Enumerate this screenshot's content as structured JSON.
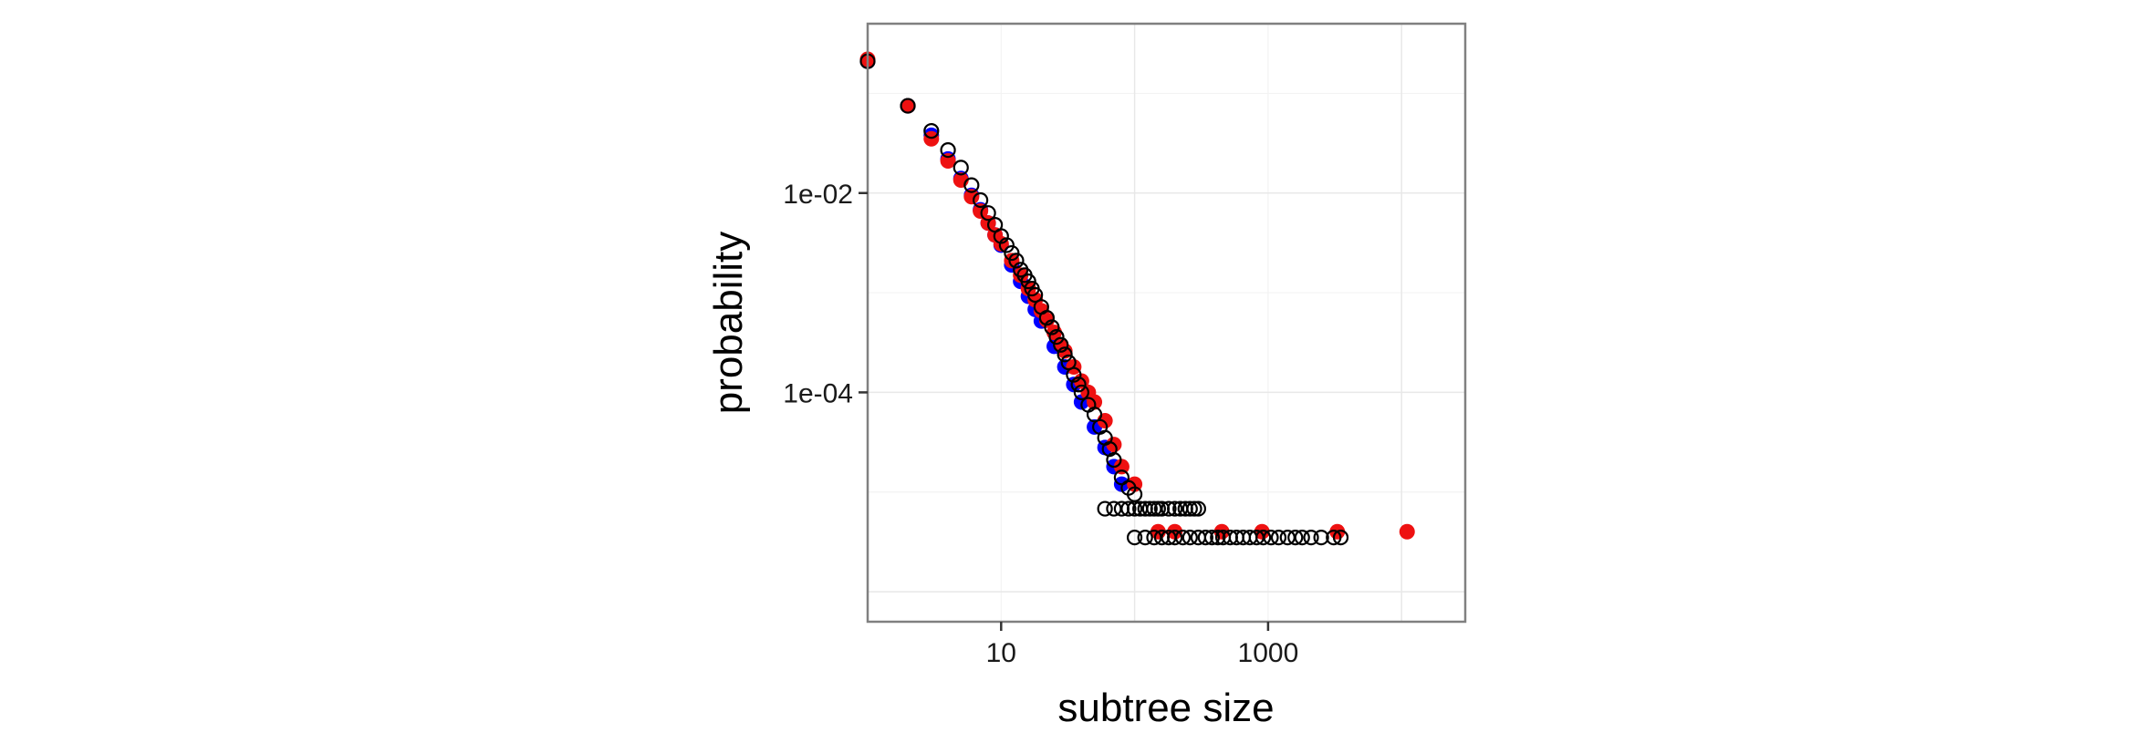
{
  "chart_data": {
    "type": "scatter",
    "title": "",
    "xlabel": "subtree size",
    "ylabel": "probability",
    "x_scale": "log10",
    "y_scale": "log10",
    "xlim": [
      1,
      30000
    ],
    "ylim": [
      5e-07,
      0.5
    ],
    "grid": true,
    "legend": "none",
    "x_ticks": [
      {
        "value": 10,
        "label": "10"
      },
      {
        "value": 1000,
        "label": "1000"
      }
    ],
    "y_ticks": [
      {
        "value": 0.01,
        "label": "1e-02"
      },
      {
        "value": 0.0001,
        "label": "1e-04"
      }
    ],
    "series": [
      {
        "marker": "filled-circle",
        "color": "#0000ff",
        "points": [
          [
            1,
            0.21
          ],
          [
            2,
            0.075
          ],
          [
            3,
            0.038
          ],
          [
            4,
            0.022
          ],
          [
            5,
            0.014
          ],
          [
            6,
            0.0095
          ],
          [
            7,
            0.0068
          ],
          [
            8,
            0.005
          ],
          [
            9,
            0.0038
          ],
          [
            10,
            0.003
          ],
          [
            12,
            0.0019
          ],
          [
            14,
            0.0013
          ],
          [
            16,
            0.00092
          ],
          [
            18,
            0.00068
          ],
          [
            20,
            0.00052
          ],
          [
            25,
            0.00029
          ],
          [
            30,
            0.00018
          ],
          [
            35,
            0.00012
          ],
          [
            40,
            8e-05
          ],
          [
            50,
            4.5e-05
          ],
          [
            60,
            2.8e-05
          ],
          [
            70,
            1.8e-05
          ],
          [
            80,
            1.2e-05
          ]
        ]
      },
      {
        "marker": "filled-circle",
        "color": "#ee1111",
        "points": [
          [
            1,
            0.22
          ],
          [
            2,
            0.075
          ],
          [
            3,
            0.035
          ],
          [
            4,
            0.021
          ],
          [
            5,
            0.0135
          ],
          [
            6,
            0.0092
          ],
          [
            7,
            0.0066
          ],
          [
            8,
            0.005
          ],
          [
            9,
            0.0038
          ],
          [
            10,
            0.0031
          ],
          [
            12,
            0.0021
          ],
          [
            14,
            0.0015
          ],
          [
            16,
            0.0011
          ],
          [
            18,
            0.00085
          ],
          [
            20,
            0.00066
          ],
          [
            22,
            0.00053
          ],
          [
            25,
            0.0004
          ],
          [
            28,
            0.0003
          ],
          [
            30,
            0.00026
          ],
          [
            35,
            0.00018
          ],
          [
            40,
            0.00013
          ],
          [
            45,
            0.0001
          ],
          [
            50,
            8e-05
          ],
          [
            60,
            5.2e-05
          ],
          [
            70,
            3e-05
          ],
          [
            80,
            1.8e-05
          ],
          [
            100,
            1.2e-05
          ],
          [
            150,
            4e-06
          ],
          [
            200,
            4e-06
          ],
          [
            450,
            4e-06
          ],
          [
            900,
            4e-06
          ],
          [
            3300,
            4e-06
          ],
          [
            11000,
            4e-06
          ]
        ]
      },
      {
        "marker": "open-circle",
        "color": "#000000",
        "points": [
          [
            1,
            0.21
          ],
          [
            2,
            0.075
          ],
          [
            3,
            0.042
          ],
          [
            4,
            0.027
          ],
          [
            5,
            0.018
          ],
          [
            6,
            0.012
          ],
          [
            7,
            0.0085
          ],
          [
            8,
            0.0063
          ],
          [
            9,
            0.0048
          ],
          [
            10,
            0.0037
          ],
          [
            11,
            0.003
          ],
          [
            12,
            0.0025
          ],
          [
            13,
            0.0021
          ],
          [
            14,
            0.0017
          ],
          [
            15,
            0.0015
          ],
          [
            16,
            0.0013
          ],
          [
            17,
            0.0011
          ],
          [
            18,
            0.00095
          ],
          [
            20,
            0.00072
          ],
          [
            22,
            0.00056
          ],
          [
            24,
            0.00045
          ],
          [
            26,
            0.00036
          ],
          [
            28,
            0.0003
          ],
          [
            30,
            0.00024
          ],
          [
            32,
            0.0002
          ],
          [
            35,
            0.00015
          ],
          [
            38,
            0.00012
          ],
          [
            40,
            0.0001
          ],
          [
            45,
            7.5e-05
          ],
          [
            50,
            6e-05
          ],
          [
            55,
            4.5e-05
          ],
          [
            60,
            3.5e-05
          ],
          [
            65,
            2.7e-05
          ],
          [
            70,
            2.1e-05
          ],
          [
            80,
            1.4e-05
          ],
          [
            90,
            1.1e-05
          ],
          [
            100,
            9.5e-06
          ],
          [
            60,
            6.8e-06
          ],
          [
            70,
            6.8e-06
          ],
          [
            80,
            6.8e-06
          ],
          [
            90,
            6.8e-06
          ],
          [
            100,
            6.8e-06
          ],
          [
            110,
            6.8e-06
          ],
          [
            120,
            6.8e-06
          ],
          [
            130,
            6.8e-06
          ],
          [
            140,
            6.8e-06
          ],
          [
            150,
            6.8e-06
          ],
          [
            160,
            6.8e-06
          ],
          [
            180,
            6.8e-06
          ],
          [
            200,
            6.8e-06
          ],
          [
            220,
            6.8e-06
          ],
          [
            240,
            6.8e-06
          ],
          [
            260,
            6.8e-06
          ],
          [
            280,
            6.8e-06
          ],
          [
            300,
            6.8e-06
          ],
          [
            100,
            3.5e-06
          ],
          [
            120,
            3.5e-06
          ],
          [
            140,
            3.5e-06
          ],
          [
            160,
            3.5e-06
          ],
          [
            180,
            3.5e-06
          ],
          [
            200,
            3.5e-06
          ],
          [
            230,
            3.5e-06
          ],
          [
            260,
            3.5e-06
          ],
          [
            300,
            3.5e-06
          ],
          [
            340,
            3.5e-06
          ],
          [
            380,
            3.5e-06
          ],
          [
            420,
            3.5e-06
          ],
          [
            460,
            3.5e-06
          ],
          [
            520,
            3.5e-06
          ],
          [
            580,
            3.5e-06
          ],
          [
            650,
            3.5e-06
          ],
          [
            730,
            3.5e-06
          ],
          [
            820,
            3.5e-06
          ],
          [
            920,
            3.5e-06
          ],
          [
            1050,
            3.5e-06
          ],
          [
            1200,
            3.5e-06
          ],
          [
            1400,
            3.5e-06
          ],
          [
            1600,
            3.5e-06
          ],
          [
            1800,
            3.5e-06
          ],
          [
            2100,
            3.5e-06
          ],
          [
            2500,
            3.5e-06
          ],
          [
            3100,
            3.5e-06
          ],
          [
            3500,
            3.5e-06
          ]
        ]
      }
    ]
  }
}
